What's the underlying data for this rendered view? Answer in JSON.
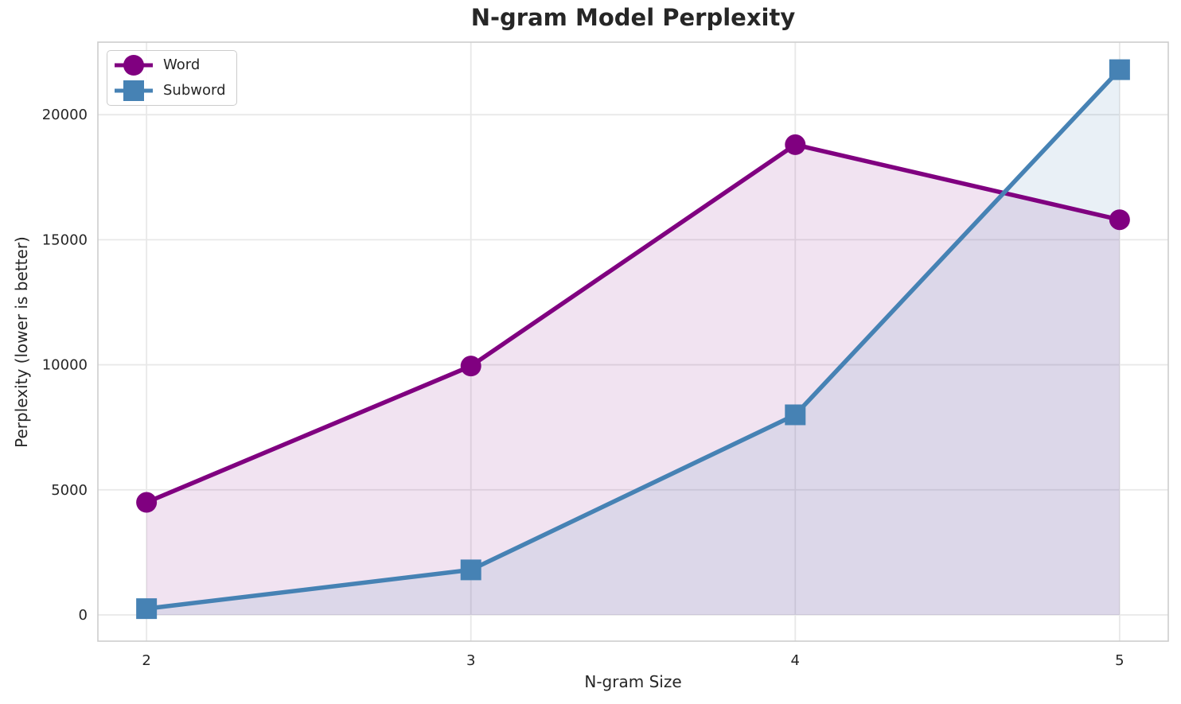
{
  "chart_data": {
    "type": "line",
    "title": "N-gram Model Perplexity",
    "xlabel": "N-gram Size",
    "ylabel": "Perplexity (lower is better)",
    "x": [
      2,
      3,
      4,
      5
    ],
    "x_ticks": [
      2,
      3,
      4,
      5
    ],
    "y_ticks": [
      0,
      5000,
      10000,
      15000,
      20000
    ],
    "xlim": [
      1.85,
      5.15
    ],
    "ylim": [
      -1050,
      22900
    ],
    "grid": true,
    "area_fill_baseline": 0,
    "legend_position": "upper-left",
    "series": [
      {
        "name": "Word",
        "marker": "circle",
        "color": "#800080",
        "fill_color": "rgba(128,0,128,0.11)",
        "values": [
          4500,
          9950,
          18800,
          15800
        ]
      },
      {
        "name": "Subword",
        "marker": "square",
        "color": "#4682B4",
        "fill_color": "rgba(70,130,180,0.12)",
        "values": [
          250,
          1800,
          8000,
          21800
        ]
      }
    ]
  },
  "style": {
    "text_color": "#262626",
    "grid_color": "#e8e8e8",
    "spine_color": "#cdcdcd",
    "background": "#ffffff",
    "tick_font_px": 18
  }
}
